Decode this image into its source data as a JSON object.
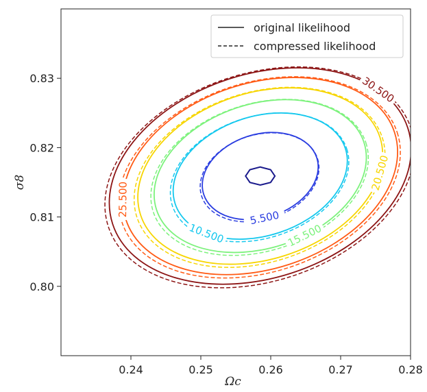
{
  "chart_data": {
    "type": "line",
    "subtype": "contour",
    "xlabel": "Ωc",
    "ylabel": "σ8",
    "xlim": [
      0.23,
      0.28
    ],
    "ylim": [
      0.79,
      0.84
    ],
    "xticks": [
      0.24,
      0.25,
      0.26,
      0.27,
      0.28
    ],
    "xtick_labels": [
      "0.24",
      "0.25",
      "0.26",
      "0.27",
      "0.28"
    ],
    "yticks": [
      0.8,
      0.81,
      0.82,
      0.83
    ],
    "ytick_labels": [
      "0.80",
      "0.81",
      "0.82",
      "0.83"
    ],
    "grid": false,
    "center": [
      0.2585,
      0.8159
    ],
    "legend": {
      "position": "top-right",
      "entries": [
        {
          "label": "original likelihood",
          "style": "solid"
        },
        {
          "label": "compressed likelihood",
          "style": "dashed"
        }
      ]
    },
    "levels": [
      {
        "value": 0.5,
        "label": "",
        "color": "#1a1a8c",
        "rx": 0.0021,
        "ry": 0.0013,
        "labeled": false
      },
      {
        "value": 5.5,
        "label": "5.500",
        "color": "#2a3de0",
        "rx": 0.0085,
        "ry": 0.006
      },
      {
        "value": 10.5,
        "label": "10.500",
        "color": "#14c8ee",
        "rx": 0.0128,
        "ry": 0.0086
      },
      {
        "value": 15.5,
        "label": "15.500",
        "color": "#7cf27c",
        "rx": 0.0156,
        "ry": 0.0104
      },
      {
        "value": 20.5,
        "label": "20.500",
        "color": "#f7d500",
        "rx": 0.018,
        "ry": 0.012
      },
      {
        "value": 25.5,
        "label": "25.500",
        "color": "#ff5a14",
        "rx": 0.0202,
        "ry": 0.0134
      },
      {
        "value": 30.5,
        "label": "30.500",
        "color": "#8c1414",
        "rx": 0.0222,
        "ry": 0.0147
      }
    ],
    "angle_deg": -18
  }
}
